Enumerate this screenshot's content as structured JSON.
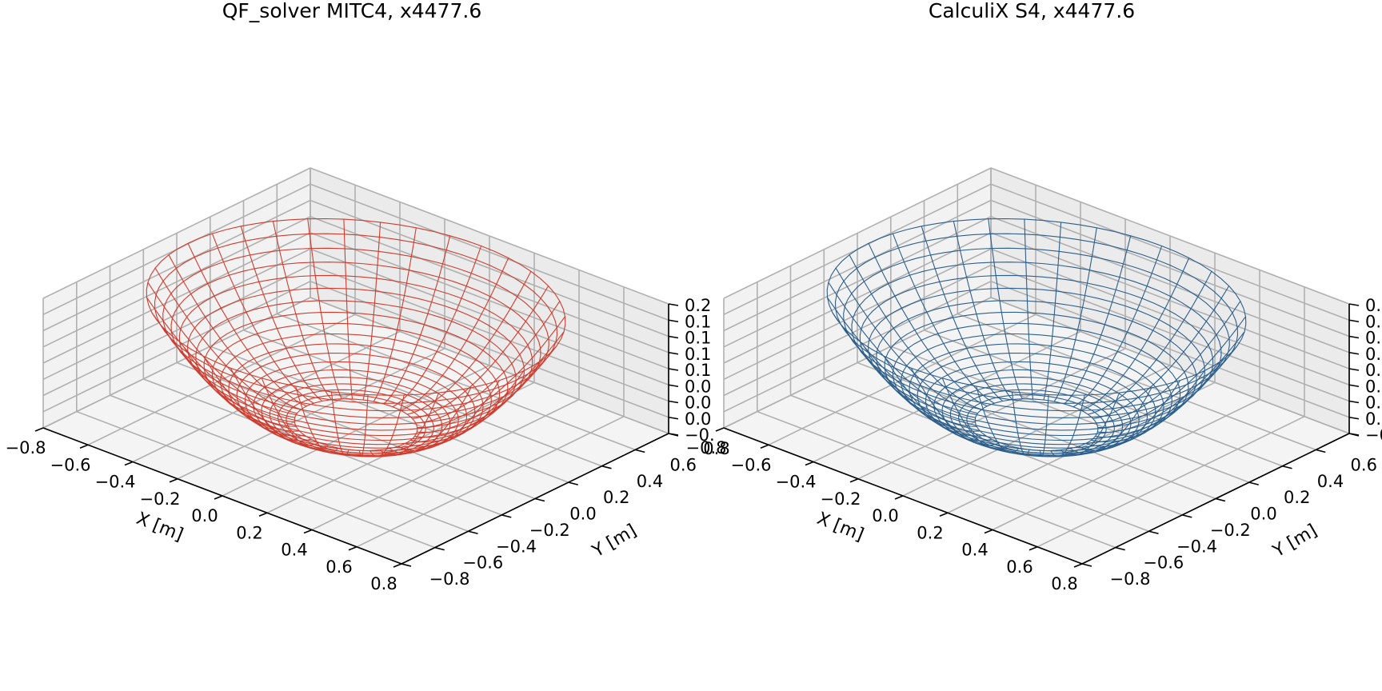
{
  "chart_data": [
    {
      "type": "surface3d-wireframe",
      "title": "QF_solver MITC4, x4477.6",
      "series_color": "#cc3d2f",
      "xlabel": "X [m]",
      "ylabel": "Y [m]",
      "zlabel": "",
      "xlim": [
        -0.8,
        0.8
      ],
      "ylim": [
        -0.8,
        0.8
      ],
      "zlim": [
        -0.01,
        0.21
      ],
      "x_ticks": [
        "−0.8",
        "−0.6",
        "−0.4",
        "−0.2",
        "0.0",
        "0.2",
        "0.4",
        "0.6",
        "0.8"
      ],
      "y_ticks": [
        "−0.8",
        "−0.6",
        "−0.4",
        "−0.2",
        "0.0",
        "0.2",
        "0.4",
        "0.6",
        "0.8"
      ],
      "z_ticks": [
        "−0.",
        "0.0",
        "0.0",
        "0.0",
        "0.1",
        "0.1",
        "0.1",
        "0.1",
        "0.2"
      ],
      "grid": true,
      "surface": {
        "shape": "bowl",
        "inner_radius": 0.22,
        "outer_radius": 0.75,
        "height": 0.2,
        "radial_lines": 36,
        "rings": 18
      }
    },
    {
      "type": "surface3d-wireframe",
      "title": "CalculiX S4, x4477.6",
      "series_color": "#2d5f8b",
      "xlabel": "X [m]",
      "ylabel": "Y [m]",
      "zlabel": "",
      "xlim": [
        -0.8,
        0.8
      ],
      "ylim": [
        -0.8,
        0.8
      ],
      "zlim": [
        -0.01,
        0.21
      ],
      "x_ticks": [
        "−0.8",
        "−0.6",
        "−0.4",
        "−0.2",
        "0.0",
        "0.2",
        "0.4",
        "0.6",
        "0.8"
      ],
      "y_ticks": [
        "−0.8",
        "−0.6",
        "−0.4",
        "−0.2",
        "0.0",
        "0.2",
        "0.4",
        "0.6",
        "0.8"
      ],
      "z_ticks": [
        "−0",
        "0.",
        "0.",
        "0.",
        "0.",
        "0.",
        "0.",
        "0.",
        "0."
      ],
      "grid": true,
      "surface": {
        "shape": "bowl",
        "inner_radius": 0.22,
        "outer_radius": 0.75,
        "height": 0.2,
        "radial_lines": 36,
        "rings": 18
      }
    }
  ]
}
